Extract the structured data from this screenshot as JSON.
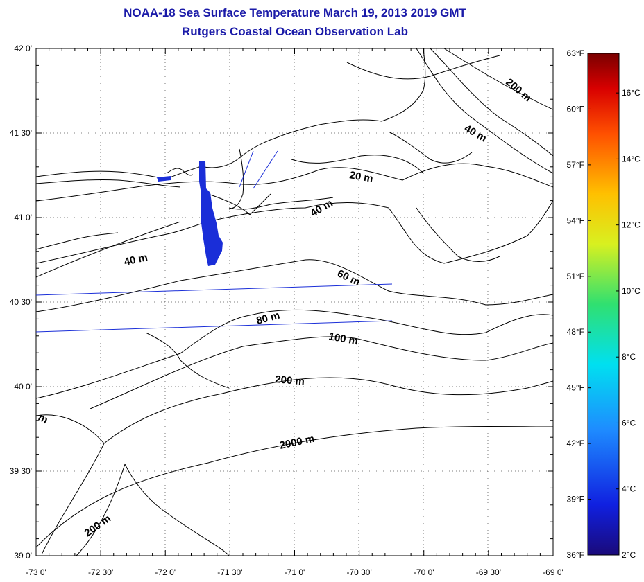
{
  "header": {
    "title": "NOAA-18 Sea Surface Temperature March 19, 2013 2019 GMT",
    "subtitle": "Rutgers Coastal Ocean Observation Lab"
  },
  "map": {
    "lon_range": [
      -73.0,
      -69.0
    ],
    "lat_range": [
      39.0,
      42.0
    ],
    "lon_ticks": [
      "-73 0'",
      "-72 30'",
      "-72 0'",
      "-71 30'",
      "-71 0'",
      "-70 30'",
      "-70 0'",
      "-69 30'",
      "-69 0'"
    ],
    "lat_ticks": [
      "39 0'",
      "39 30'",
      "40 0'",
      "40 30'",
      "41 0'",
      "41 30'",
      "42 0'"
    ],
    "contour_labels": [
      "200 m",
      "40 m",
      "20 m",
      "40 m",
      "40 m",
      "60 m",
      "80 m",
      "100 m",
      "200 m",
      "2000 m",
      "200 m",
      "m"
    ],
    "sst_patch_color": "#1a2ed8",
    "land_outline_color": "#000000",
    "grid_color": "#555555"
  },
  "colorbar": {
    "fahrenheit_labels": [
      "63°F",
      "60°F",
      "57°F",
      "54°F",
      "51°F",
      "48°F",
      "45°F",
      "42°F",
      "39°F",
      "36°F"
    ],
    "celsius_labels": [
      "16°C",
      "14°C",
      "12°C",
      "10°C",
      "8°C",
      "6°C",
      "4°C",
      "2°C"
    ],
    "range_c": [
      2,
      17.2
    ],
    "colors": [
      "#1a0a7a",
      "#1020e0",
      "#1e8cff",
      "#00e0f0",
      "#30e070",
      "#d8f020",
      "#ffc000",
      "#ff5000",
      "#d80000",
      "#7a0000"
    ]
  }
}
